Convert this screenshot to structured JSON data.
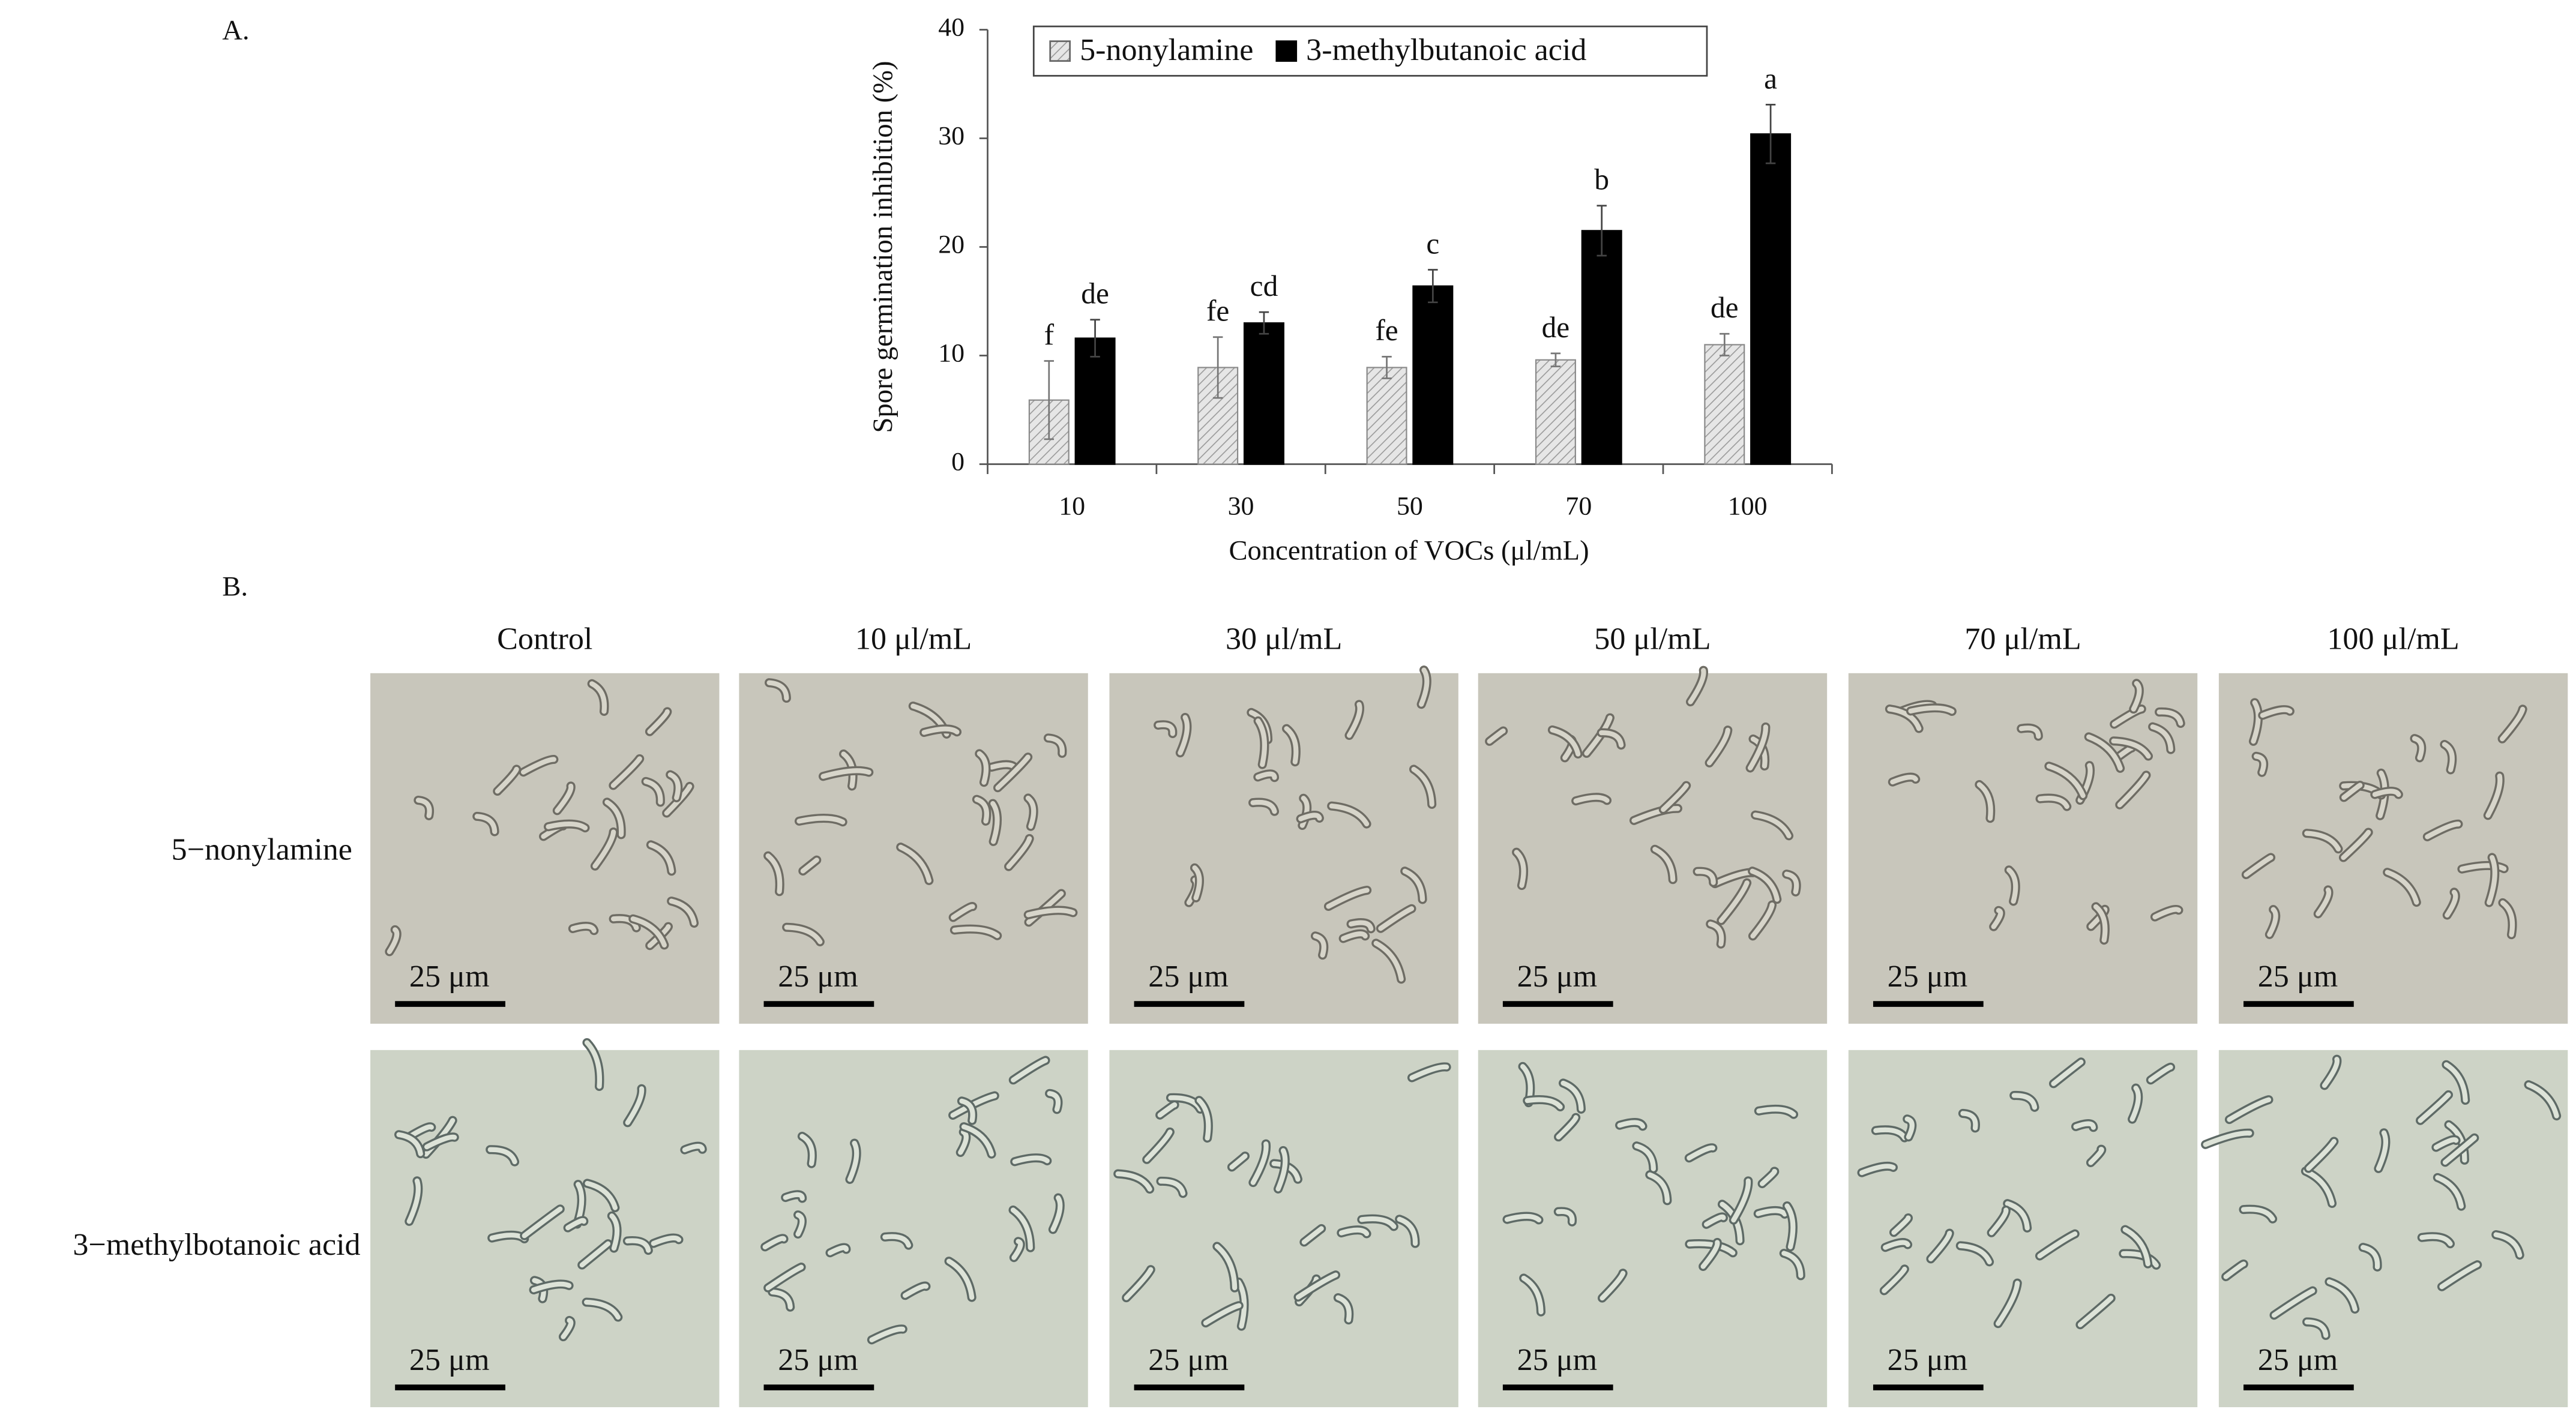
{
  "chart_data": {
    "type": "bar",
    "y_label": "Spore germination inhibition (%)",
    "x_label": "Concentration of VOCs (μl/mL)",
    "categories": [
      "10",
      "30",
      "50",
      "70",
      "100"
    ],
    "ylim": [
      0,
      40
    ],
    "yticks": [
      0,
      10,
      20,
      30,
      40
    ],
    "series": [
      {
        "name": "5-nonylamine",
        "color": "#d9d9d9",
        "hatch": true,
        "values": [
          5.9,
          8.9,
          8.9,
          9.6,
          11.0
        ],
        "errors": [
          3.6,
          2.8,
          1.0,
          0.6,
          1.0
        ],
        "significance": [
          "f",
          "fe",
          "fe",
          "de",
          "de"
        ]
      },
      {
        "name": "3-methylbutanoic acid",
        "color": "#000000",
        "hatch": false,
        "values": [
          11.6,
          13.0,
          16.4,
          21.5,
          30.4
        ],
        "errors": [
          1.7,
          1.0,
          1.5,
          2.3,
          2.7
        ],
        "significance": [
          "de",
          "cd",
          "c",
          "b",
          "a"
        ]
      }
    ],
    "legend": "top"
  },
  "figure": {
    "panel_labels": [
      "A.",
      "B."
    ],
    "columns": [
      "Control",
      "10 μl/mL",
      "30 μl/mL",
      "50 μl/mL",
      "70 μl/mL",
      "100 μl/mL"
    ],
    "rows": [
      "5−nonylamine",
      "3−methylbotanoic acid"
    ],
    "scale_bar": "25 μm"
  }
}
